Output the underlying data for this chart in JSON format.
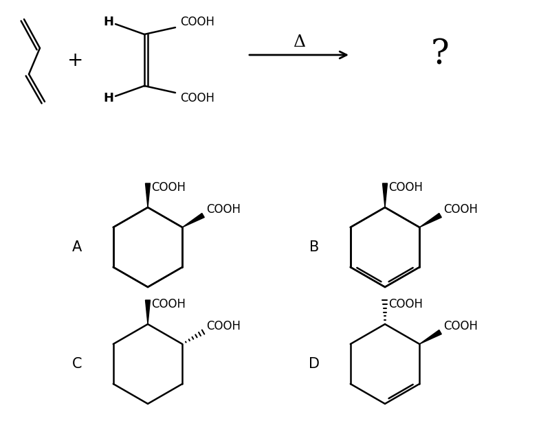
{
  "white": "#ffffff",
  "black": "#000000",
  "arrow_label": "Δ",
  "question_mark": "?",
  "labels": [
    "A",
    "B",
    "C",
    "D"
  ]
}
